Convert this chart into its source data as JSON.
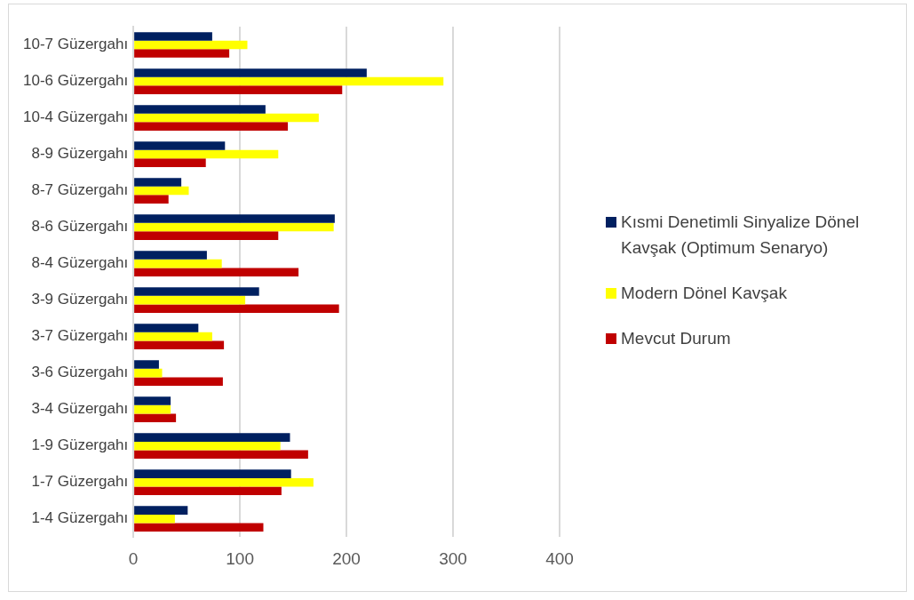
{
  "chart_data": {
    "type": "bar",
    "orientation": "horizontal",
    "categories": [
      "10-7 Güzergahı",
      "10-6 Güzergahı",
      "10-4 Güzergahı",
      "8-9 Güzergahı",
      "8-7 Güzergahı",
      "8-6 Güzergahı",
      "8-4 Güzergahı",
      "3-9 Güzergahı",
      "3-7 Güzergahı",
      "3-6 Güzergahı",
      "3-4 Güzergahı",
      "1-9 Güzergahı",
      "1-7 Güzergahı",
      "1-4 Güzergahı"
    ],
    "series": [
      {
        "name": "Kısmi Denetimli Sinyalize Dönel Kavşak (Optimum Senaryo)",
        "color": "#002060",
        "values": [
          74,
          219,
          124,
          86,
          45,
          189,
          69,
          118,
          61,
          24,
          35,
          147,
          148,
          51
        ]
      },
      {
        "name": "Modern Dönel Kavşak",
        "color": "#ffff00",
        "values": [
          107,
          291,
          174,
          136,
          52,
          188,
          83,
          105,
          74,
          27,
          35,
          138,
          169,
          39
        ]
      },
      {
        "name": "Mevcut Durum",
        "color": "#c00000",
        "values": [
          90,
          196,
          145,
          68,
          33,
          136,
          155,
          193,
          85,
          84,
          40,
          164,
          139,
          122
        ]
      }
    ],
    "xlim": [
      0,
      400
    ],
    "xticks": [
      0,
      100,
      200,
      300,
      400
    ],
    "grid": "x",
    "legend": "right"
  }
}
